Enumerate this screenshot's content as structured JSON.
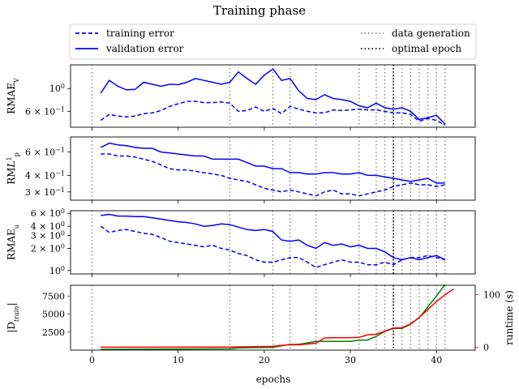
{
  "chart_data": {
    "title": "Training phase",
    "type": "line",
    "xlabel": "epochs",
    "xlim": [
      -2.5,
      44.5
    ],
    "x_ticks": [
      0,
      10,
      20,
      30,
      40
    ],
    "data_generation_epochs": [
      0,
      16,
      21,
      23,
      26,
      31,
      33,
      34,
      35,
      36,
      37,
      38,
      39,
      40,
      41
    ],
    "optimal_epoch": 35,
    "legend": {
      "placement": "top",
      "entries": [
        {
          "label": "training error",
          "style": "dashed",
          "color": "#0000ff"
        },
        {
          "label": "validation error",
          "style": "solid",
          "color": "#0000ff"
        },
        {
          "label": "data generation",
          "style": "dotted",
          "color": "#808080"
        },
        {
          "label": "optimal epoch",
          "style": "dotted",
          "color": "#000000"
        }
      ]
    },
    "panels": [
      {
        "id": "p1",
        "ylabel": "RMAE",
        "ylabel_sub": "V",
        "yscale": "log",
        "ylim": [
          0.42,
          1.7
        ],
        "y_ticks": [
          {
            "value": 1.0,
            "mant": "10",
            "exp": "0"
          },
          {
            "value": 0.6,
            "mant": "6 × 10",
            "exp": "−1"
          }
        ],
        "x": [
          1,
          2,
          3,
          4,
          5,
          6,
          7,
          8,
          9,
          10,
          11,
          12,
          13,
          14,
          15,
          16,
          17,
          18,
          19,
          20,
          21,
          22,
          23,
          24,
          25,
          26,
          27,
          28,
          29,
          30,
          31,
          32,
          33,
          34,
          35,
          36,
          37,
          38,
          39,
          40,
          41
        ],
        "series": [
          {
            "name": "training error",
            "style": "dashed",
            "color": "#0000ff",
            "values": [
              0.49,
              0.56,
              0.54,
              0.53,
              0.54,
              0.57,
              0.58,
              0.61,
              0.67,
              0.71,
              0.75,
              0.75,
              0.73,
              0.73,
              0.74,
              0.72,
              0.6,
              0.61,
              0.66,
              0.6,
              0.64,
              0.57,
              0.67,
              0.63,
              0.6,
              0.58,
              0.58,
              0.62,
              0.61,
              0.62,
              0.63,
              0.62,
              0.62,
              0.6,
              0.58,
              0.58,
              0.56,
              0.48,
              0.51,
              0.49,
              0.44
            ]
          },
          {
            "name": "validation error",
            "style": "solid",
            "color": "#0000ff",
            "values": [
              0.9,
              1.2,
              1.05,
              0.97,
              0.98,
              1.15,
              1.1,
              1.05,
              1.1,
              1.09,
              1.15,
              1.25,
              1.2,
              1.15,
              1.1,
              1.15,
              1.45,
              1.25,
              1.1,
              1.35,
              1.55,
              1.2,
              1.25,
              0.95,
              0.8,
              0.78,
              0.87,
              0.8,
              0.78,
              0.75,
              0.68,
              0.65,
              0.72,
              0.65,
              0.63,
              0.65,
              0.6,
              0.5,
              0.52,
              0.55,
              0.45
            ]
          }
        ]
      },
      {
        "id": "p2",
        "ylabel": "RM",
        "ylabel_italic": "L",
        "ylabel_sub": "p",
        "ylabel_sup": "1",
        "yscale": "log",
        "ylim": [
          0.26,
          0.78
        ],
        "y_ticks": [
          {
            "value": 0.6,
            "mant": "6 × 10",
            "exp": "−1"
          },
          {
            "value": 0.4,
            "mant": "4 × 10",
            "exp": "−1"
          },
          {
            "value": 0.3,
            "mant": "3 × 10",
            "exp": "−1"
          }
        ],
        "x": [
          1,
          2,
          3,
          4,
          5,
          6,
          7,
          8,
          9,
          10,
          11,
          12,
          13,
          14,
          15,
          16,
          17,
          18,
          19,
          20,
          21,
          22,
          23,
          24,
          25,
          26,
          27,
          28,
          29,
          30,
          31,
          32,
          33,
          34,
          35,
          36,
          37,
          38,
          39,
          40,
          41
        ],
        "series": [
          {
            "name": "training error",
            "style": "dashed",
            "color": "#0000ff",
            "values": [
              0.58,
              0.58,
              0.56,
              0.56,
              0.55,
              0.53,
              0.51,
              0.48,
              0.45,
              0.44,
              0.44,
              0.43,
              0.42,
              0.41,
              0.4,
              0.38,
              0.37,
              0.36,
              0.34,
              0.32,
              0.31,
              0.3,
              0.31,
              0.3,
              0.29,
              0.28,
              0.3,
              0.31,
              0.29,
              0.29,
              0.28,
              0.29,
              0.3,
              0.31,
              0.33,
              0.34,
              0.35,
              0.34,
              0.34,
              0.33,
              0.34
            ]
          },
          {
            "name": "validation error",
            "style": "solid",
            "color": "#0000ff",
            "values": [
              0.65,
              0.7,
              0.68,
              0.67,
              0.65,
              0.64,
              0.64,
              0.6,
              0.59,
              0.58,
              0.57,
              0.56,
              0.56,
              0.53,
              0.53,
              0.53,
              0.53,
              0.5,
              0.47,
              0.47,
              0.45,
              0.45,
              0.42,
              0.42,
              0.41,
              0.41,
              0.42,
              0.42,
              0.41,
              0.41,
              0.42,
              0.4,
              0.4,
              0.39,
              0.38,
              0.37,
              0.36,
              0.37,
              0.38,
              0.35,
              0.35
            ]
          }
        ]
      },
      {
        "id": "p3",
        "ylabel": "RMAE",
        "ylabel_sub": "u",
        "yscale": "log",
        "ylim": [
          0.9,
          6.5
        ],
        "y_ticks": [
          {
            "value": 6.0,
            "mant": "6 × 10",
            "exp": "0"
          },
          {
            "value": 4.0,
            "mant": "4 × 10",
            "exp": "0"
          },
          {
            "value": 3.0,
            "mant": "3 × 10",
            "exp": "0"
          },
          {
            "value": 2.0,
            "mant": "2 × 10",
            "exp": "0"
          },
          {
            "value": 1.0,
            "mant": "10",
            "exp": "0"
          }
        ],
        "x": [
          1,
          2,
          3,
          4,
          5,
          6,
          7,
          8,
          9,
          10,
          11,
          12,
          13,
          14,
          15,
          16,
          17,
          18,
          19,
          20,
          21,
          22,
          23,
          24,
          25,
          26,
          27,
          28,
          29,
          30,
          31,
          32,
          33,
          34,
          35,
          36,
          37,
          38,
          39,
          40,
          41
        ],
        "series": [
          {
            "name": "training error",
            "style": "dashed",
            "color": "#0000ff",
            "values": [
              4.0,
              3.3,
              3.5,
              3.6,
              3.4,
              3.2,
              3.1,
              2.8,
              2.5,
              2.4,
              2.3,
              2.2,
              2.1,
              2.2,
              2.0,
              1.9,
              1.7,
              1.6,
              1.4,
              1.3,
              1.3,
              1.4,
              1.5,
              1.5,
              1.3,
              1.1,
              1.2,
              1.3,
              1.4,
              1.3,
              1.3,
              1.2,
              1.2,
              1.3,
              1.2,
              1.4,
              1.5,
              1.5,
              1.6,
              1.5,
              1.4
            ]
          },
          {
            "name": "validation error",
            "style": "solid",
            "color": "#0000ff",
            "values": [
              5.6,
              5.8,
              5.5,
              5.5,
              5.4,
              5.4,
              5.2,
              5.0,
              4.8,
              4.6,
              4.5,
              4.3,
              4.0,
              4.1,
              4.3,
              4.2,
              3.9,
              3.6,
              3.5,
              3.6,
              3.4,
              2.6,
              2.5,
              2.6,
              2.2,
              2.0,
              2.4,
              2.2,
              2.3,
              2.1,
              2.2,
              2.0,
              2.0,
              1.8,
              1.5,
              1.4,
              1.5,
              1.4,
              1.5,
              1.6,
              1.4
            ]
          }
        ]
      },
      {
        "id": "p4",
        "ylabel": "|D",
        "ylabel_sub": "train",
        "ylabel_end": "|",
        "ylabel_color": "#008000",
        "ylim": [
          0,
          9000
        ],
        "y_ticks": [
          {
            "value": 2500,
            "label": "2500"
          },
          {
            "value": 5000,
            "label": "5000"
          },
          {
            "value": 7500,
            "label": "7500"
          }
        ],
        "y2label": "runtime (s)",
        "y2label_color": "#ff0000",
        "y2lim": [
          -5,
          118
        ],
        "y2_ticks": [
          {
            "value": 0,
            "label": "0"
          },
          {
            "value": 100,
            "label": "100"
          }
        ],
        "series": [
          {
            "name": "|D_train|",
            "axis": "left",
            "style": "solid",
            "color": "#008000",
            "x": [
              1,
              16,
              17,
              21,
              22,
              23,
              24,
              26,
              27,
              28,
              30,
              31,
              32,
              33,
              34,
              35,
              36,
              37,
              38,
              39,
              40,
              41
            ],
            "values": [
              100,
              180,
              300,
              380,
              600,
              800,
              800,
              1200,
              1200,
              1200,
              1200,
              1400,
              1400,
              1900,
              2600,
              3000,
              3000,
              3600,
              4500,
              6000,
              7500,
              9100
            ]
          },
          {
            "name": "runtime",
            "axis": "right",
            "style": "solid",
            "color": "#ff0000",
            "x": [
              1,
              16,
              17,
              21,
              22,
              23,
              24,
              26,
              27,
              28,
              30,
              31,
              32,
              33,
              34,
              35,
              36,
              37,
              38,
              39,
              40,
              41,
              42
            ],
            "values": [
              0.5,
              0.8,
              1.2,
              2.0,
              4.0,
              5.0,
              5.0,
              8.0,
              18.0,
              18.5,
              18.7,
              19.0,
              24.0,
              25.0,
              31.0,
              37.0,
              37.5,
              45.0,
              57.0,
              72.0,
              87.0,
              100.0,
              111.0
            ]
          }
        ]
      }
    ]
  }
}
